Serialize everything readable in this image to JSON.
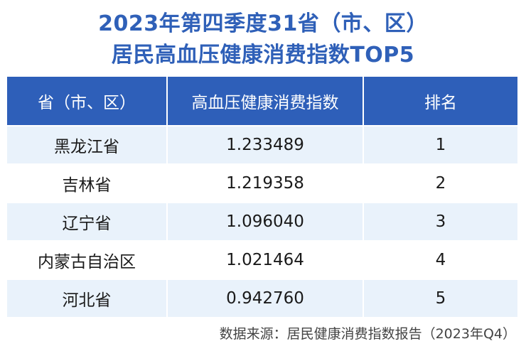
{
  "title": {
    "line1": "2023年第四季度31省（市、区）",
    "line2": "居民高血压健康消费指数TOP5"
  },
  "table": {
    "headers": [
      "省（市、区）",
      "高血压健康消费指数",
      "排名"
    ],
    "rows": [
      {
        "province": "黑龙江省",
        "index": "1.233489",
        "rank": "1"
      },
      {
        "province": "吉林省",
        "index": "1.219358",
        "rank": "2"
      },
      {
        "province": "辽宁省",
        "index": "1.096040",
        "rank": "3"
      },
      {
        "province": "内蒙古自治区",
        "index": "1.021464",
        "rank": "4"
      },
      {
        "province": "河北省",
        "index": "0.942760",
        "rank": "5"
      }
    ]
  },
  "source": "数据来源：居民健康消费指数报告（2023年Q4）",
  "colors": {
    "header_bg": "#2e5fb9",
    "title": "#2f60b8",
    "stripe": "#e9f2fb"
  }
}
